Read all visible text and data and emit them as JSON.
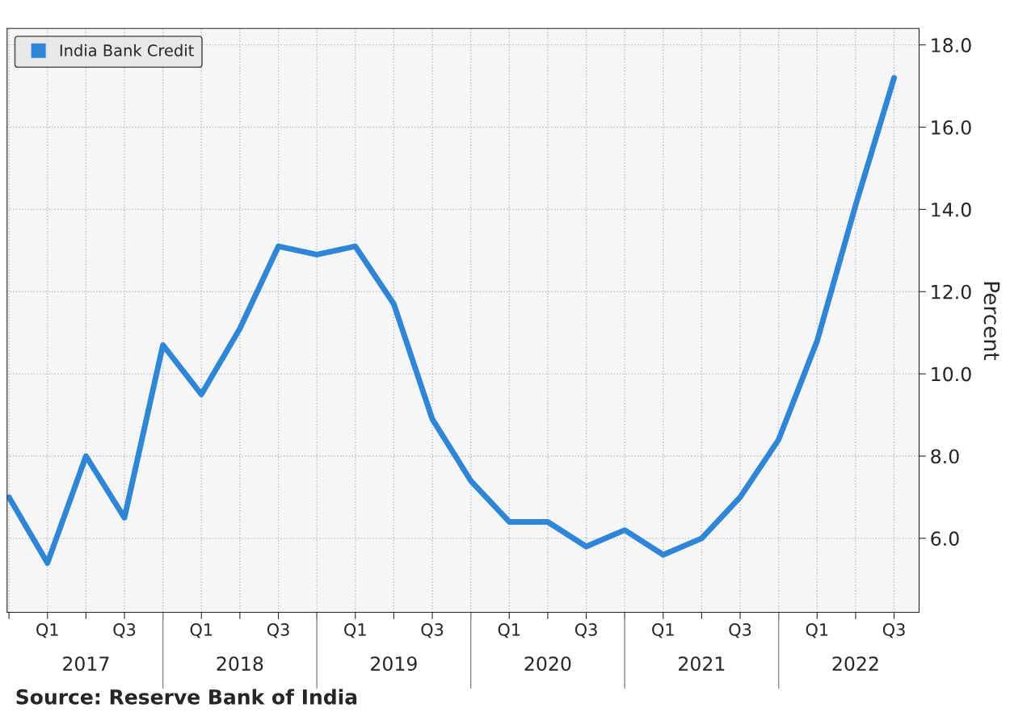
{
  "chart_data": {
    "type": "line",
    "ylabel": "Percent",
    "categories": [
      null,
      "Q1",
      null,
      "Q3",
      null,
      "Q1",
      null,
      "Q3",
      null,
      "Q1",
      null,
      "Q3",
      null,
      "Q1",
      null,
      "Q3",
      null,
      "Q1",
      null,
      "Q3",
      null,
      "Q1",
      null,
      "Q3"
    ],
    "series": [
      {
        "name": "India Bank Credit",
        "color": "#2e86d9",
        "values": [
          7.0,
          5.4,
          8.0,
          6.5,
          10.7,
          9.5,
          11.1,
          13.1,
          12.9,
          13.1,
          11.7,
          8.9,
          7.4,
          6.4,
          6.4,
          5.8,
          6.2,
          5.6,
          6.0,
          7.0,
          8.4,
          10.8,
          14.1,
          17.2
        ]
      }
    ],
    "ylim": [
      4.2,
      18.4
    ],
    "yticks": [
      {
        "value": 6,
        "label": "6.0"
      },
      {
        "value": 8,
        "label": "8.0"
      },
      {
        "value": 10,
        "label": "10.0"
      },
      {
        "value": 12,
        "label": "12.0"
      },
      {
        "value": 14,
        "label": "14.0"
      },
      {
        "value": 16,
        "label": "16.0"
      },
      {
        "value": 18,
        "label": "18.0"
      }
    ],
    "grid": true,
    "legend": "top left",
    "line_style": "solid",
    "marker": "none",
    "annotations": [
      "2017",
      "2018",
      "2019",
      "2020",
      "2021",
      "2022",
      "Source: Reserve Bank of India"
    ]
  }
}
